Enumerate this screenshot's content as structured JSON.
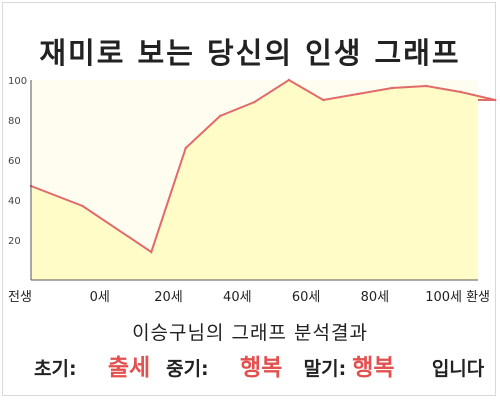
{
  "title": "재미로 보는 당신의 인생 그래프",
  "chart_data": {
    "type": "area",
    "categories": [
      "전생",
      "0세",
      "",
      "20세",
      "",
      "40세",
      "",
      "60세",
      "",
      "80세",
      "",
      "100세",
      "",
      "환생"
    ],
    "values": [
      47,
      37,
      14,
      66,
      82,
      89,
      100,
      90,
      93,
      96,
      97,
      94,
      90
    ],
    "x": [
      0,
      1.5,
      3.5,
      4.5,
      5.5,
      6.5,
      7.5,
      8.5,
      9.5,
      10.5,
      11.5,
      12.5,
      13.5
    ],
    "xlabel": "",
    "ylabel": "",
    "ylim": [
      0,
      100
    ],
    "yticks": [
      20,
      40,
      60,
      80,
      100
    ],
    "xtick_labels": [
      {
        "label": "전생",
        "x": 0
      },
      {
        "label": "0세",
        "x": 2
      },
      {
        "label": "20세",
        "x": 4
      },
      {
        "label": "40세",
        "x": 6
      },
      {
        "label": "60세",
        "x": 8
      },
      {
        "label": "80세",
        "x": 10
      },
      {
        "label": "100세",
        "x": 12
      },
      {
        "label": "환생",
        "x": 14
      }
    ],
    "grid": false,
    "colors": {
      "line": "#e26a6a",
      "fill": "#fffcc8",
      "bg": "#fffdf0"
    }
  },
  "result": {
    "title": "이승구님의 그래프 분석결과",
    "early_label": "초기:",
    "early_value": "출세",
    "middle_label": "중기:",
    "middle_value": "행복",
    "late_label": "말기:",
    "late_value": "행복",
    "suffix": "입니다"
  }
}
